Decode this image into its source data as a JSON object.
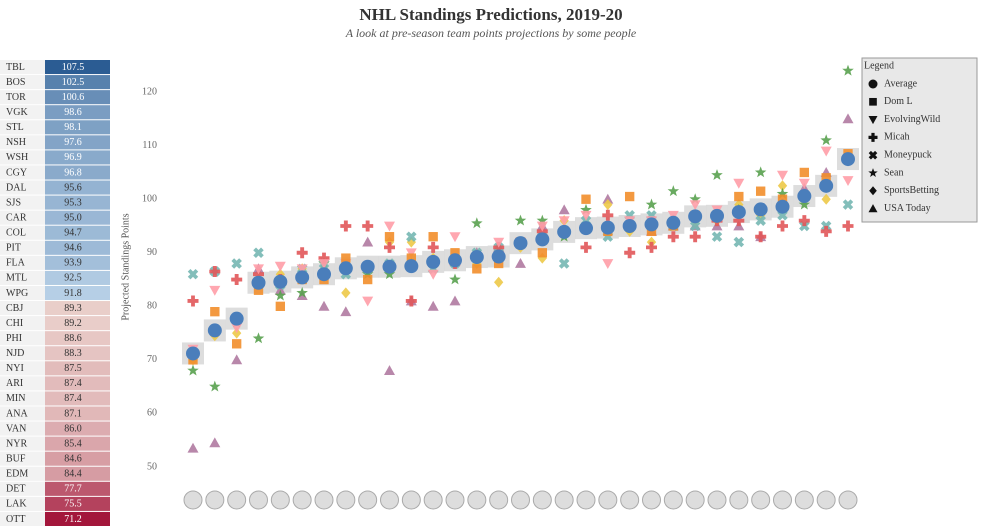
{
  "chart_data": {
    "type": "scatter",
    "title": "NHL Standings Predictions, 2019-20",
    "subtitle": "A look at pre-season team points projections by some people",
    "y_label": "Projected Standings Points",
    "legend_title": "Legend",
    "categories": [
      "TBL",
      "BOS",
      "TOR",
      "VGK",
      "STL",
      "NSH",
      "WSH",
      "CGY",
      "DAL",
      "SJS",
      "CAR",
      "COL",
      "PIT",
      "FLA",
      "MTL",
      "WPG",
      "CBJ",
      "CHI",
      "PHI",
      "NJD",
      "NYI",
      "ARI",
      "MIN",
      "ANA",
      "VAN",
      "NYR",
      "BUF",
      "EDM",
      "DET",
      "LAK",
      "OTT"
    ],
    "ylim": [
      48.5,
      126
    ],
    "yticks": [
      50,
      60,
      70,
      80,
      90,
      100,
      110,
      120
    ],
    "series": [
      {
        "name": "Average",
        "color": "#4a7ebb",
        "marker": "circle",
        "values": [
          107.5,
          102.5,
          100.6,
          98.6,
          98.1,
          97.6,
          96.9,
          96.8,
          95.6,
          95.3,
          95.0,
          94.7,
          94.6,
          93.9,
          92.5,
          91.8,
          89.3,
          89.2,
          88.6,
          88.3,
          87.5,
          87.4,
          87.4,
          87.1,
          86.0,
          85.4,
          84.6,
          84.4,
          77.7,
          75.5,
          71.2
        ],
        "value_labels": [
          "107.5",
          "102.5",
          "100.6",
          "98.6",
          "98.1",
          "97.6",
          "96.9",
          "96.8",
          "95.6",
          "95.3",
          "95.0",
          "94.7",
          "94.6",
          "93.9",
          "92.5",
          "91.8",
          "89.3",
          "89.2",
          "88.6",
          "88.3",
          "87.5",
          "87.4",
          "87.4",
          "87.1",
          "86.0",
          "85.4",
          "84.6",
          "84.4",
          "77.7",
          "75.5",
          "71.2"
        ]
      },
      {
        "name": "Dom L",
        "color": "#f28e2b",
        "marker": "square",
        "values": [
          108.5,
          104,
          105,
          100,
          101.5,
          100.5,
          97,
          97,
          95,
          94,
          100.5,
          94,
          100,
          94,
          90,
          92,
          88,
          87,
          90,
          93,
          89,
          93,
          85,
          89,
          85,
          85,
          80,
          83,
          73,
          79,
          70
        ]
      },
      {
        "name": "EvolvingWild",
        "color": "#ff9da7",
        "marker": "triangle-down",
        "values": [
          103.5,
          109,
          103,
          104.5,
          98,
          103,
          98,
          99,
          97,
          96,
          96,
          88,
          97,
          96,
          95,
          92,
          92,
          89,
          93,
          86,
          90,
          95,
          81,
          88,
          88,
          87,
          87.5,
          87,
          76,
          83,
          72
        ]
      },
      {
        "name": "Micah",
        "color": "#e15759",
        "marker": "plus",
        "values": [
          95,
          94,
          96,
          95,
          93,
          96,
          96,
          93,
          93,
          91,
          90,
          97,
          91,
          94,
          94,
          92,
          91,
          89,
          88,
          91,
          81,
          91,
          95,
          95,
          89,
          90,
          85,
          86,
          85,
          86.5,
          81
        ]
      },
      {
        "name": "Moneypuck",
        "color": "#76b7b2",
        "marker": "cross",
        "values": [
          99,
          95,
          95,
          97,
          96,
          92,
          93,
          95,
          95,
          97,
          97,
          93,
          96,
          88,
          93,
          92,
          91,
          90,
          88,
          87,
          93,
          88,
          87,
          86,
          88,
          87,
          84,
          90,
          88,
          86.5,
          86
        ]
      },
      {
        "name": "Sean",
        "color": "#59a14f",
        "marker": "star",
        "values": [
          124,
          111,
          99,
          101,
          105,
          98,
          104.5,
          100,
          101.5,
          99,
          95,
          94,
          98,
          93,
          96,
          96,
          89,
          95.5,
          85,
          88,
          88,
          86,
          86,
          87,
          88,
          82.5,
          82,
          74,
          77,
          65,
          68
        ]
      },
      {
        "name": "SportsBetting",
        "color": "#edc948",
        "marker": "diamond",
        "values": [
          108,
          100,
          100,
          102.5,
          97,
          99,
          96,
          96,
          96,
          92,
          94,
          99,
          95,
          96,
          89,
          91,
          84.5,
          88,
          89,
          89,
          92,
          92,
          87,
          82.5,
          86,
          87,
          86,
          85,
          75,
          74.5,
          70
        ]
      },
      {
        "name": "USA Today",
        "color": "#b07aa1",
        "marker": "triangle-up",
        "values": [
          115,
          105,
          102,
          99,
          93,
          95,
          95,
          95,
          95,
          94,
          95,
          100,
          95,
          98,
          95,
          88,
          91,
          90,
          81,
          80,
          81,
          68,
          92,
          79,
          80,
          82,
          83,
          87,
          70,
          54.5,
          53.5
        ]
      }
    ]
  }
}
